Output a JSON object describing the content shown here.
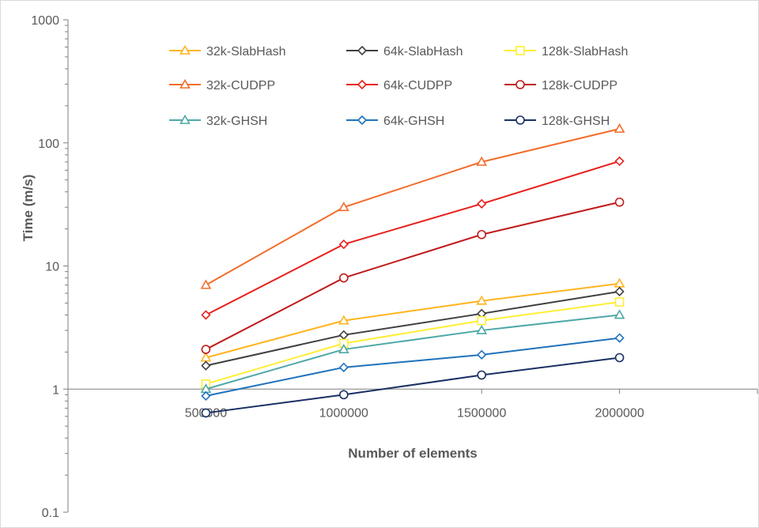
{
  "chart_data": {
    "type": "line",
    "title": "",
    "xlabel": "Number of elements",
    "ylabel": "Time (m/s)",
    "yscale": "log",
    "ylim": [
      0.1,
      1000
    ],
    "xlim": [
      0,
      2500000
    ],
    "x_crosses_at_y": 1,
    "grid": false,
    "legend": "top-center",
    "x": [
      500000,
      1000000,
      1500000,
      2000000
    ],
    "x_tick_labels": [
      "500000",
      "1000000",
      "1500000",
      "2000000"
    ],
    "y_ticks": [
      0.1,
      1,
      10,
      100,
      1000
    ],
    "y_tick_labels": [
      "0.1",
      "1",
      "10",
      "100",
      "1000"
    ],
    "series": [
      {
        "name": "32k-SlabHash",
        "color": "#ffb41e",
        "marker": "triangle",
        "values": [
          1.8,
          3.6,
          5.2,
          7.2
        ]
      },
      {
        "name": "64k-SlabHash",
        "color": "#404040",
        "marker": "diamond",
        "values": [
          1.55,
          2.75,
          4.1,
          6.2
        ]
      },
      {
        "name": "128k-SlabHash",
        "color": "#ffee33",
        "marker": "square",
        "values": [
          1.1,
          2.35,
          3.6,
          5.1
        ]
      },
      {
        "name": "32k-CUDPP",
        "color": "#f26d2b",
        "marker": "triangle",
        "values": [
          7,
          30,
          70,
          130
        ]
      },
      {
        "name": "64k-CUDPP",
        "color": "#e8201d",
        "marker": "diamond",
        "values": [
          4,
          15,
          32,
          71
        ]
      },
      {
        "name": "128k-CUDPP",
        "color": "#c01b1b",
        "marker": "circle",
        "values": [
          2.1,
          8,
          18,
          33
        ]
      },
      {
        "name": "32k-GHSH",
        "color": "#4fa8a8",
        "marker": "triangle",
        "values": [
          1.0,
          2.1,
          3.0,
          4.0
        ]
      },
      {
        "name": "64k-GHSH",
        "color": "#1f72bc",
        "marker": "diamond",
        "values": [
          0.88,
          1.5,
          1.9,
          2.6
        ]
      },
      {
        "name": "128k-GHSH",
        "color": "#1a2f63",
        "marker": "circle",
        "values": [
          0.64,
          0.9,
          1.3,
          1.8
        ]
      }
    ]
  }
}
